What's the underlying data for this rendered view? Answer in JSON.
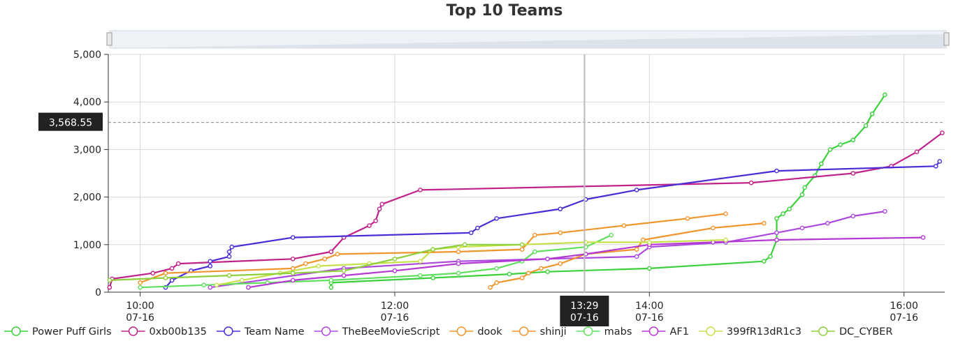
{
  "chart_data": {
    "type": "line",
    "title": "Top 10 Teams",
    "xlabel": "",
    "ylabel": "",
    "x_range_hours": [
      9.75,
      16.32
    ],
    "ylim": [
      0,
      5000
    ],
    "y_ticks": [
      0,
      1000,
      2000,
      3000,
      4000,
      5000
    ],
    "y_tick_labels": [
      "0",
      "1,000",
      "2,000",
      "3,000",
      "4,000",
      "5,000"
    ],
    "x_ticks": [
      {
        "hour": 10,
        "time": "10:00",
        "date": "07-16"
      },
      {
        "hour": 12,
        "time": "12:00",
        "date": "07-16"
      },
      {
        "hour": 14,
        "time": "14:00",
        "date": "07-16"
      },
      {
        "hour": 16,
        "time": "16:00",
        "date": "07-16"
      }
    ],
    "grid": true,
    "legend_position": "bottom",
    "crosshair": {
      "y_label": "3,568.55",
      "y": 3568.55,
      "x_time": "13:29",
      "x_date": "07-16",
      "x_hour": 13.49
    },
    "series": [
      {
        "name": "Power Puff Girls",
        "color": "#3bd13b",
        "points": [
          [
            11.5,
            100
          ],
          [
            11.5,
            200
          ],
          [
            12.3,
            300
          ],
          [
            12.9,
            380
          ],
          [
            13.2,
            430
          ],
          [
            14.0,
            500
          ],
          [
            14.9,
            650
          ],
          [
            14.95,
            750
          ],
          [
            15.0,
            1100
          ],
          [
            15.0,
            1550
          ],
          [
            15.05,
            1650
          ],
          [
            15.1,
            1750
          ],
          [
            15.2,
            2050
          ],
          [
            15.22,
            2200
          ],
          [
            15.3,
            2450
          ],
          [
            15.35,
            2700
          ],
          [
            15.42,
            3000
          ],
          [
            15.5,
            3100
          ],
          [
            15.6,
            3200
          ],
          [
            15.7,
            3500
          ],
          [
            15.75,
            3750
          ],
          [
            15.85,
            4150
          ]
        ]
      },
      {
        "name": "0xb00b135",
        "color": "#c0218a",
        "points": [
          [
            9.76,
            100
          ],
          [
            9.78,
            280
          ],
          [
            10.1,
            400
          ],
          [
            10.25,
            500
          ],
          [
            10.3,
            600
          ],
          [
            11.2,
            700
          ],
          [
            11.5,
            850
          ],
          [
            11.6,
            1150
          ],
          [
            11.8,
            1400
          ],
          [
            11.85,
            1500
          ],
          [
            11.88,
            1750
          ],
          [
            11.9,
            1850
          ],
          [
            12.2,
            2150
          ],
          [
            14.8,
            2300
          ],
          [
            15.6,
            2500
          ],
          [
            15.9,
            2650
          ],
          [
            16.1,
            2950
          ],
          [
            16.3,
            3350
          ]
        ]
      },
      {
        "name": "Team Name",
        "color": "#4b2bd6",
        "points": [
          [
            10.2,
            100
          ],
          [
            10.25,
            250
          ],
          [
            10.4,
            450
          ],
          [
            10.55,
            550
          ],
          [
            10.55,
            650
          ],
          [
            10.7,
            750
          ],
          [
            10.7,
            850
          ],
          [
            10.72,
            950
          ],
          [
            11.2,
            1150
          ],
          [
            12.6,
            1250
          ],
          [
            12.65,
            1350
          ],
          [
            12.8,
            1550
          ],
          [
            13.3,
            1750
          ],
          [
            13.5,
            1950
          ],
          [
            13.9,
            2150
          ],
          [
            15.0,
            2550
          ],
          [
            16.25,
            2650
          ],
          [
            16.28,
            2750
          ]
        ]
      },
      {
        "name": "TheBeeMovieScript",
        "color": "#ad48df",
        "points": [
          [
            10.55,
            100
          ],
          [
            11.6,
            500
          ],
          [
            12.5,
            650
          ],
          [
            13.2,
            700
          ],
          [
            13.9,
            750
          ],
          [
            14.0,
            950
          ],
          [
            14.6,
            1050
          ],
          [
            15.0,
            1250
          ],
          [
            15.2,
            1350
          ],
          [
            15.4,
            1450
          ],
          [
            15.6,
            1600
          ],
          [
            15.85,
            1700
          ]
        ]
      },
      {
        "name": "dook",
        "color": "#f0942c",
        "points": [
          [
            10.0,
            200
          ],
          [
            10.2,
            400
          ],
          [
            11.2,
            500
          ],
          [
            11.3,
            600
          ],
          [
            11.45,
            700
          ],
          [
            11.55,
            800
          ],
          [
            12.5,
            850
          ],
          [
            13.0,
            900
          ],
          [
            13.1,
            1200
          ],
          [
            13.3,
            1250
          ],
          [
            13.8,
            1400
          ],
          [
            14.3,
            1550
          ],
          [
            14.6,
            1650
          ]
        ]
      },
      {
        "name": "shinji",
        "color": "#f0942c",
        "points": [
          [
            12.75,
            100
          ],
          [
            12.8,
            200
          ],
          [
            13.0,
            300
          ],
          [
            13.05,
            400
          ],
          [
            13.15,
            500
          ],
          [
            13.3,
            600
          ],
          [
            13.5,
            800
          ],
          [
            13.9,
            900
          ],
          [
            13.95,
            1100
          ],
          [
            14.5,
            1350
          ],
          [
            14.9,
            1450
          ]
        ]
      },
      {
        "name": "mabs",
        "color": "#5ee05e",
        "points": [
          [
            10.0,
            100
          ],
          [
            10.5,
            150
          ],
          [
            11.0,
            200
          ],
          [
            11.5,
            250
          ],
          [
            12.2,
            350
          ],
          [
            12.5,
            400
          ],
          [
            12.8,
            500
          ],
          [
            13.0,
            650
          ],
          [
            13.1,
            850
          ],
          [
            13.5,
            950
          ],
          [
            13.7,
            1200
          ]
        ]
      },
      {
        "name": "AF1",
        "color": "#b537d4",
        "points": [
          [
            10.85,
            100
          ],
          [
            11.2,
            250
          ],
          [
            11.6,
            350
          ],
          [
            12.0,
            450
          ],
          [
            12.5,
            600
          ],
          [
            13.2,
            700
          ],
          [
            13.5,
            800
          ],
          [
            14.0,
            1000
          ],
          [
            14.5,
            1050
          ],
          [
            15.0,
            1100
          ],
          [
            16.15,
            1150
          ]
        ]
      },
      {
        "name": "399fR13dR1c3",
        "color": "#c5e24a",
        "points": [
          [
            10.6,
            150
          ],
          [
            10.8,
            250
          ],
          [
            11.1,
            400
          ],
          [
            11.4,
            550
          ],
          [
            11.8,
            600
          ],
          [
            12.2,
            650
          ],
          [
            12.3,
            900
          ],
          [
            12.5,
            950
          ],
          [
            13.0,
            1000
          ],
          [
            13.5,
            1050
          ],
          [
            14.0,
            1050
          ],
          [
            14.6,
            1100
          ]
        ]
      },
      {
        "name": "DC_CYBER",
        "color": "#8ccf3b",
        "points": [
          [
            9.76,
            250
          ],
          [
            10.2,
            300
          ],
          [
            10.7,
            350
          ],
          [
            11.2,
            400
          ],
          [
            11.6,
            450
          ],
          [
            12.0,
            700
          ],
          [
            12.3,
            900
          ],
          [
            12.55,
            1000
          ],
          [
            13.0,
            1000
          ]
        ]
      }
    ]
  }
}
